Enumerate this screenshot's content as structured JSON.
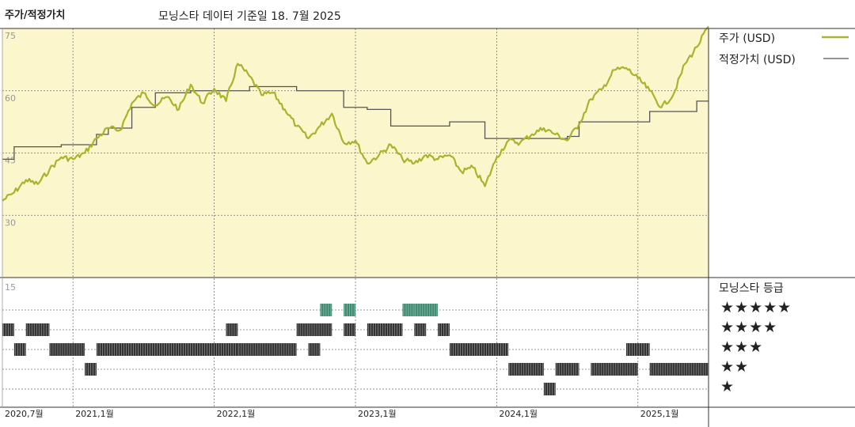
{
  "header": {
    "left_title": "주가/적정가치",
    "subtitle": "모닝스타 데이터 기준일 18. 7월 2025"
  },
  "legend": {
    "price": "주가 (USD)",
    "fair_value": "적정가치 (USD)"
  },
  "colors": {
    "price_line": "#a8b42c",
    "fair_value_line": "#555555",
    "top_bg": "#fbf6cc",
    "rating_5_bars": "#3d8a70",
    "rating_bars": "#333333"
  },
  "ratings_title": "모닝스타 등급",
  "star_labels": [
    "★★★★★",
    "★★★★",
    "★★★",
    "★★",
    "★"
  ],
  "chart_data": [
    {
      "type": "line",
      "title": "",
      "x_range": [
        "2020-07",
        "2025-07"
      ],
      "x_ticks": [
        "2020,7월",
        "2021,1월",
        "2022,1월",
        "2023,1월",
        "2024,1월",
        "2025,1월"
      ],
      "ylim": [
        15,
        75
      ],
      "y_ticks": [
        75,
        60,
        45,
        30
      ],
      "grid": true,
      "legend_position": "right",
      "series": [
        {
          "name": "주가 (USD)",
          "points": [
            [
              "2020-07",
              33.5
            ],
            [
              "2020-08",
              35.5
            ],
            [
              "2020-09",
              38.5
            ],
            [
              "2020-10",
              37.5
            ],
            [
              "2020-11",
              41.0
            ],
            [
              "2020-12",
              44.0
            ],
            [
              "2021-01",
              43.5
            ],
            [
              "2021-02",
              45.0
            ],
            [
              "2021-03",
              48.5
            ],
            [
              "2021-04",
              51.0
            ],
            [
              "2021-05",
              50.5
            ],
            [
              "2021-06",
              57.0
            ],
            [
              "2021-07",
              59.5
            ],
            [
              "2021-08",
              56.5
            ],
            [
              "2021-09",
              58.5
            ],
            [
              "2021-10",
              55.5
            ],
            [
              "2021-11",
              61.5
            ],
            [
              "2021-12",
              57.0
            ],
            [
              "2022-01",
              60.5
            ],
            [
              "2022-02",
              57.5
            ],
            [
              "2022-03",
              66.5
            ],
            [
              "2022-04",
              63.5
            ],
            [
              "2022-05",
              59.0
            ],
            [
              "2022-06",
              59.5
            ],
            [
              "2022-07",
              55.5
            ],
            [
              "2022-08",
              51.5
            ],
            [
              "2022-09",
              48.5
            ],
            [
              "2022-10",
              51.5
            ],
            [
              "2022-11",
              54.5
            ],
            [
              "2022-12",
              47.5
            ],
            [
              "2023-01",
              48.0
            ],
            [
              "2023-02",
              42.5
            ],
            [
              "2023-03",
              44.5
            ],
            [
              "2023-04",
              47.0
            ],
            [
              "2023-05",
              43.5
            ],
            [
              "2023-06",
              42.5
            ],
            [
              "2023-07",
              44.5
            ],
            [
              "2023-08",
              43.5
            ],
            [
              "2023-09",
              44.5
            ],
            [
              "2023-10",
              40.5
            ],
            [
              "2023-11",
              41.5
            ],
            [
              "2023-12",
              37.0
            ],
            [
              "2024-01",
              44.0
            ],
            [
              "2024-02",
              48.0
            ],
            [
              "2024-03",
              47.5
            ],
            [
              "2024-04",
              49.5
            ],
            [
              "2024-05",
              51.0
            ],
            [
              "2024-06",
              49.5
            ],
            [
              "2024-07",
              48.0
            ],
            [
              "2024-08",
              52.0
            ],
            [
              "2024-09",
              58.0
            ],
            [
              "2024-10",
              60.5
            ],
            [
              "2024-11",
              65.0
            ],
            [
              "2024-12",
              65.5
            ],
            [
              "2025-01",
              63.0
            ],
            [
              "2025-02",
              60.0
            ],
            [
              "2025-03",
              56.0
            ],
            [
              "2025-04",
              59.0
            ],
            [
              "2025-05",
              66.5
            ],
            [
              "2025-06",
              70.5
            ],
            [
              "2025-07",
              75.5
            ]
          ]
        },
        {
          "name": "적정가치 (USD)",
          "step": true,
          "points": [
            [
              "2020-07",
              43.5
            ],
            [
              "2020-08",
              46.5
            ],
            [
              "2020-12",
              47.0
            ],
            [
              "2021-03",
              49.5
            ],
            [
              "2021-04",
              51.0
            ],
            [
              "2021-06",
              56.0
            ],
            [
              "2021-08",
              59.5
            ],
            [
              "2021-11",
              60.0
            ],
            [
              "2022-04",
              61.0
            ],
            [
              "2022-08",
              60.0
            ],
            [
              "2022-11",
              60.0
            ],
            [
              "2022-12",
              56.0
            ],
            [
              "2023-02",
              55.5
            ],
            [
              "2023-04",
              51.5
            ],
            [
              "2023-08",
              51.5
            ],
            [
              "2023-09",
              52.5
            ],
            [
              "2023-12",
              48.5
            ],
            [
              "2024-05",
              48.5
            ],
            [
              "2024-07",
              49.0
            ],
            [
              "2024-08",
              52.5
            ],
            [
              "2025-01",
              52.5
            ],
            [
              "2025-02",
              55.0
            ],
            [
              "2025-05",
              55.0
            ],
            [
              "2025-06",
              57.5
            ],
            [
              "2025-07",
              57.5
            ]
          ]
        }
      ]
    },
    {
      "type": "timeline",
      "title": "모닝스타 등급",
      "y_ticks": [
        15
      ],
      "rows": [
        {
          "stars": 5,
          "periods": [
            [
              "2022-10",
              "2022-11"
            ],
            [
              "2022-12",
              "2023-01"
            ],
            [
              "2023-05",
              "2023-06"
            ],
            [
              "2023-06",
              "2023-08"
            ]
          ]
        },
        {
          "stars": 4,
          "periods": [
            [
              "2020-07",
              "2020-08"
            ],
            [
              "2020-09",
              "2020-11"
            ],
            [
              "2022-02",
              "2022-03"
            ],
            [
              "2022-08",
              "2022-09"
            ],
            [
              "2022-09",
              "2022-11"
            ],
            [
              "2022-12",
              "2023-01"
            ],
            [
              "2023-02",
              "2023-05"
            ],
            [
              "2023-06",
              "2023-07"
            ],
            [
              "2023-08",
              "2023-09"
            ]
          ]
        },
        {
          "stars": 3,
          "periods": [
            [
              "2020-08",
              "2020-09"
            ],
            [
              "2020-11",
              "2021-02"
            ],
            [
              "2021-03",
              "2022-03"
            ],
            [
              "2022-03",
              "2022-08"
            ],
            [
              "2022-09",
              "2022-10"
            ],
            [
              "2023-09",
              "2024-02"
            ],
            [
              "2024-12",
              "2025-02"
            ]
          ]
        },
        {
          "stars": 2,
          "periods": [
            [
              "2021-02",
              "2021-03"
            ],
            [
              "2024-02",
              "2024-05"
            ],
            [
              "2024-06",
              "2024-08"
            ],
            [
              "2024-09",
              "2025-01"
            ],
            [
              "2025-02",
              "2025-07"
            ]
          ]
        },
        {
          "stars": 1,
          "periods": [
            [
              "2024-05",
              "2024-06"
            ]
          ]
        }
      ]
    }
  ]
}
